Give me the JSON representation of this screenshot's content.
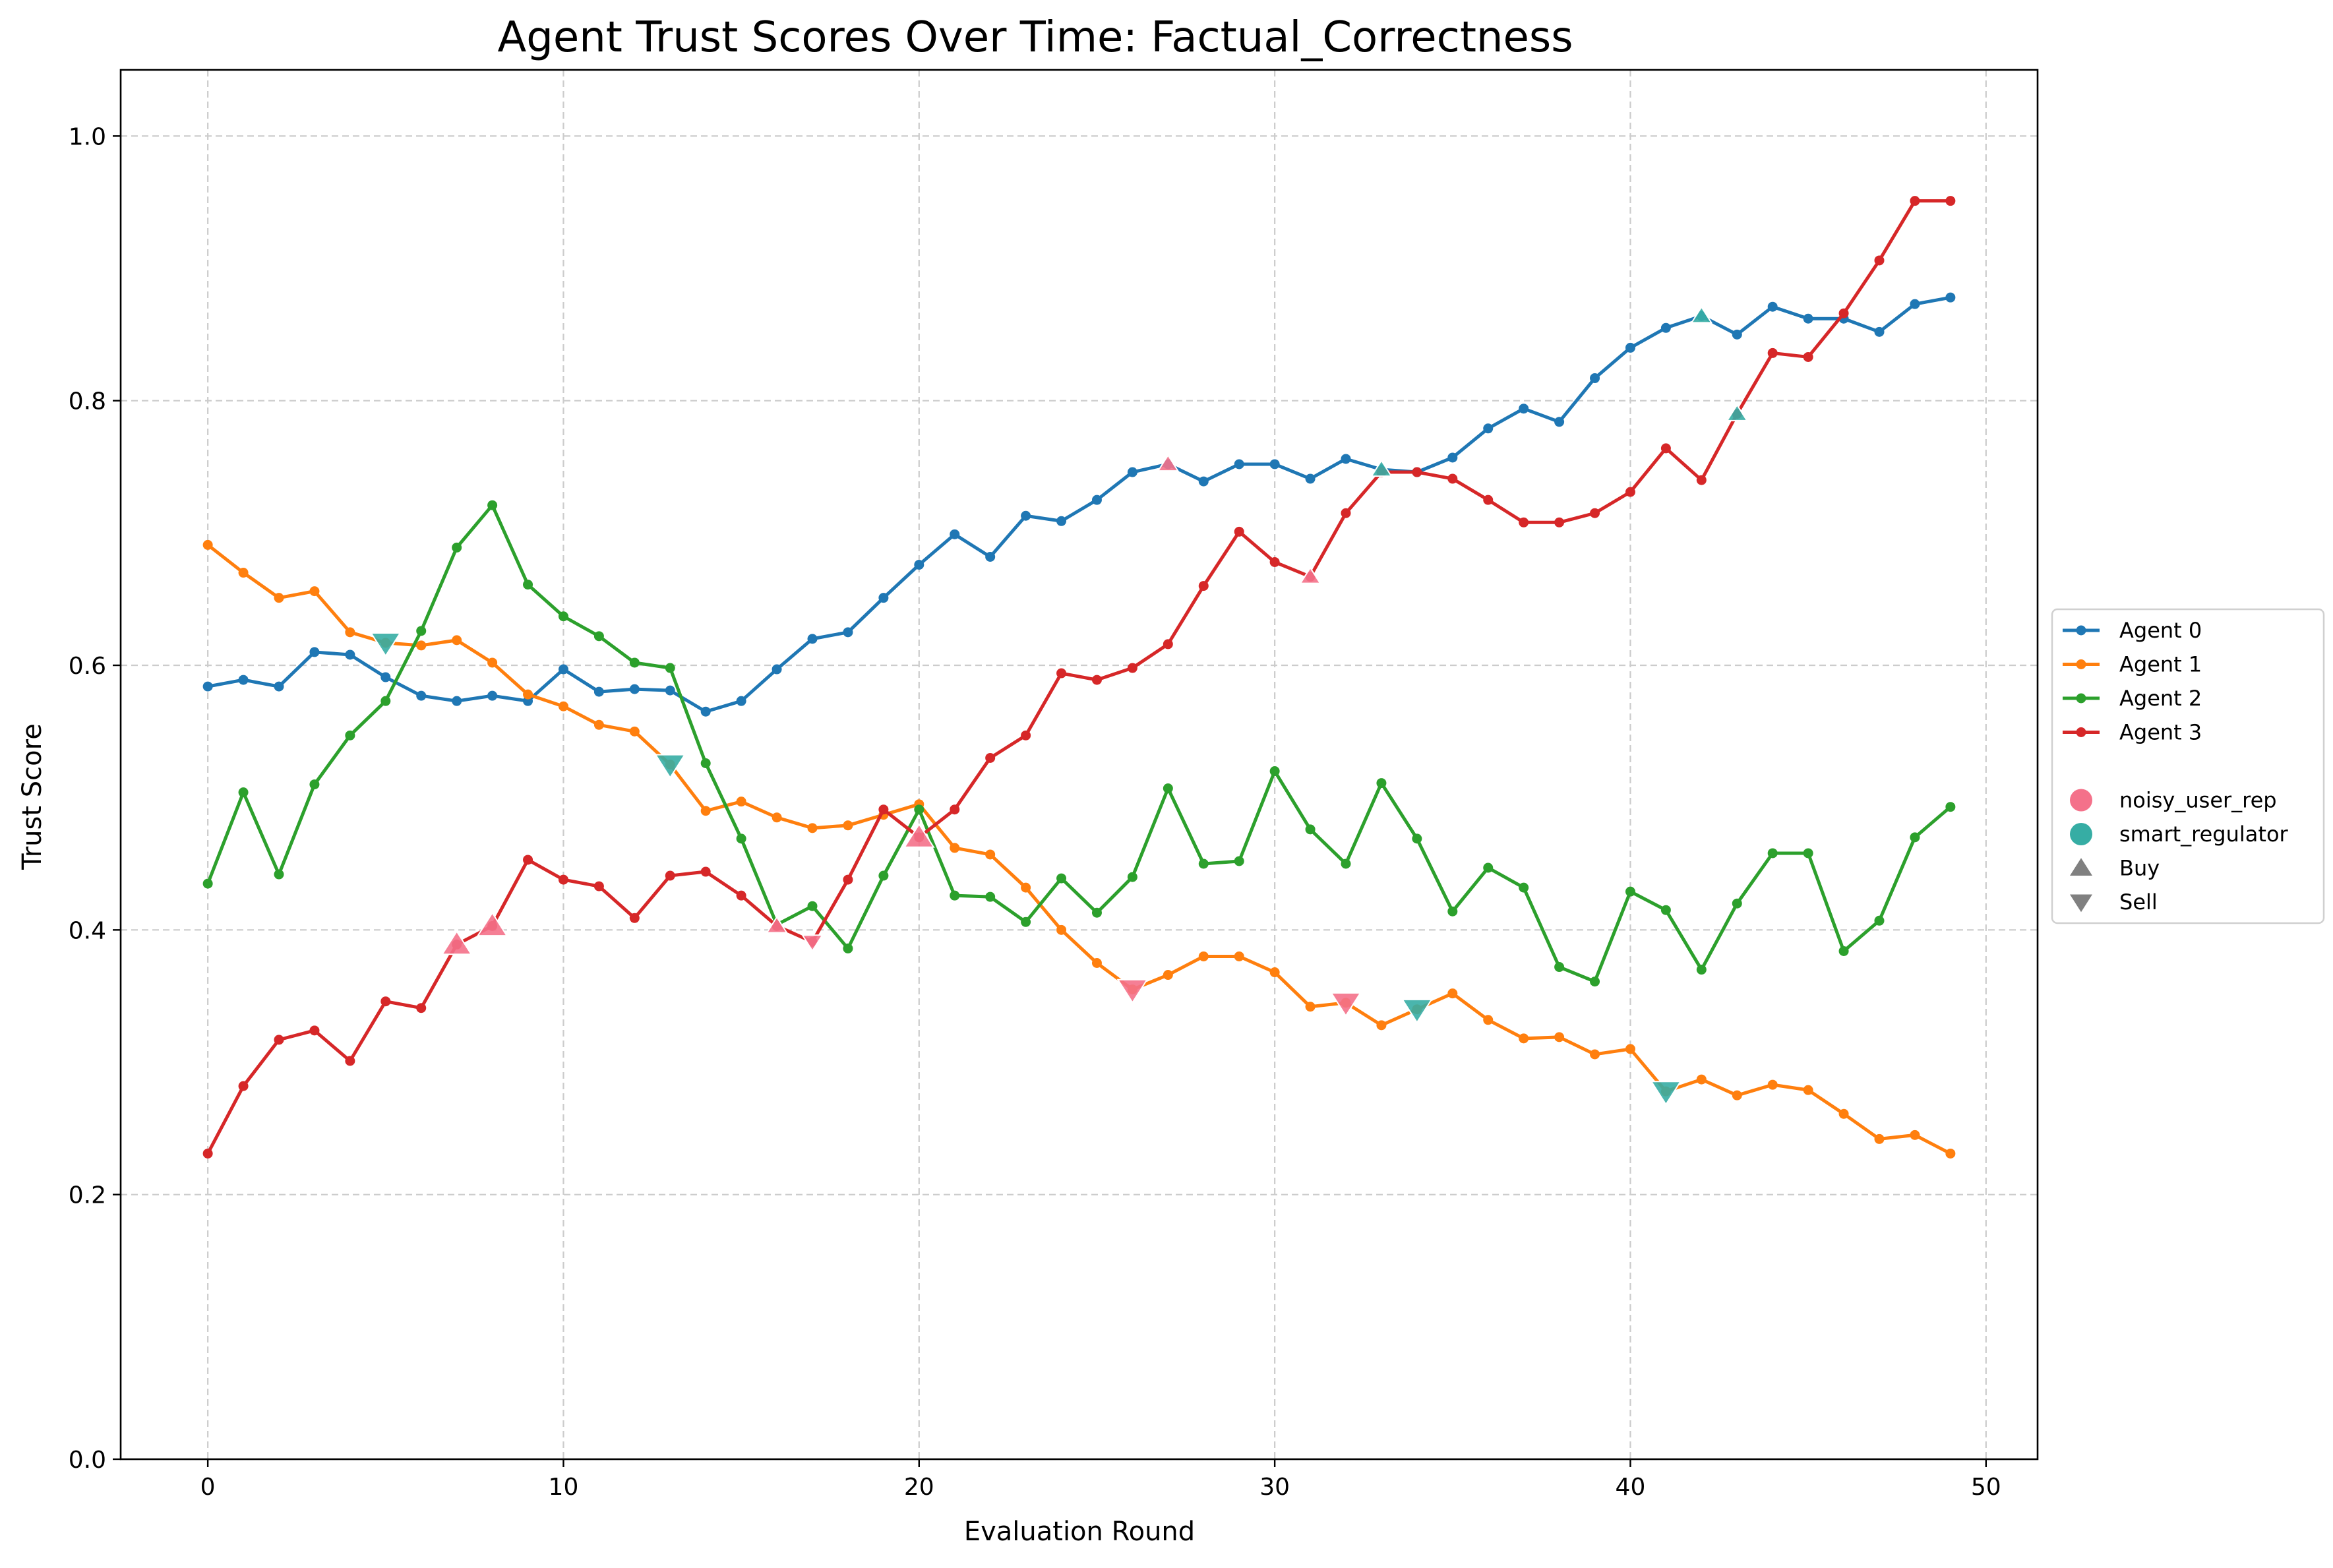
{
  "chart_data": {
    "type": "line",
    "title": "Agent Trust Scores Over Time: Factual_Correctness",
    "xlabel": "Evaluation Round",
    "ylabel": "Trust Score",
    "xlim": [
      -2.45,
      51.45
    ],
    "ylim": [
      0.0,
      1.05
    ],
    "xticks": [
      0,
      10,
      20,
      30,
      40,
      50
    ],
    "yticks": [
      0.0,
      0.2,
      0.4,
      0.6,
      0.8,
      1.0
    ],
    "xtick_labels": [
      "0",
      "10",
      "20",
      "30",
      "40",
      "50"
    ],
    "ytick_labels": [
      "0.0",
      "0.2",
      "0.4",
      "0.6",
      "0.8",
      "1.0"
    ],
    "grid": true,
    "legend_placement": "outside-right",
    "x": [
      0,
      1,
      2,
      3,
      4,
      5,
      6,
      7,
      8,
      9,
      10,
      11,
      12,
      13,
      14,
      15,
      16,
      17,
      18,
      19,
      20,
      21,
      22,
      23,
      24,
      25,
      26,
      27,
      28,
      29,
      30,
      31,
      32,
      33,
      34,
      35,
      36,
      37,
      38,
      39,
      40,
      41,
      42,
      43,
      44,
      45,
      46,
      47,
      48,
      49
    ],
    "series": [
      {
        "name": "Agent 0",
        "color": "#1f77b4",
        "values": [
          0.584,
          0.589,
          0.584,
          0.61,
          0.608,
          0.591,
          0.577,
          0.573,
          0.577,
          0.573,
          0.597,
          0.58,
          0.582,
          0.581,
          0.565,
          0.573,
          0.597,
          0.62,
          0.625,
          0.651,
          0.676,
          0.699,
          0.682,
          0.713,
          0.709,
          0.725,
          0.746,
          0.752,
          0.739,
          0.752,
          0.752,
          0.741,
          0.756,
          0.748,
          0.746,
          0.757,
          0.779,
          0.794,
          0.784,
          0.817,
          0.84,
          0.855,
          0.864,
          0.85,
          0.871,
          0.862,
          0.862,
          0.852,
          0.873,
          0.878
        ]
      },
      {
        "name": "Agent 1",
        "color": "#ff7f0e",
        "values": [
          0.691,
          0.67,
          0.651,
          0.656,
          0.625,
          0.617,
          0.615,
          0.619,
          0.602,
          0.578,
          0.569,
          0.555,
          0.55,
          0.525,
          0.49,
          0.497,
          0.485,
          0.477,
          0.479,
          0.487,
          0.495,
          0.462,
          0.457,
          0.432,
          0.4,
          0.375,
          0.355,
          0.366,
          0.38,
          0.38,
          0.368,
          0.342,
          0.345,
          0.328,
          0.34,
          0.352,
          0.332,
          0.318,
          0.319,
          0.306,
          0.31,
          0.278,
          0.287,
          0.275,
          0.283,
          0.279,
          0.261,
          0.242,
          0.245,
          0.231
        ]
      },
      {
        "name": "Agent 2",
        "color": "#2ca02c",
        "values": [
          0.435,
          0.504,
          0.442,
          0.51,
          0.547,
          0.573,
          0.626,
          0.689,
          0.721,
          0.661,
          0.637,
          0.622,
          0.602,
          0.598,
          0.526,
          0.469,
          0.404,
          0.418,
          0.386,
          0.441,
          0.491,
          0.426,
          0.425,
          0.406,
          0.439,
          0.413,
          0.44,
          0.507,
          0.45,
          0.452,
          0.52,
          0.476,
          0.45,
          0.511,
          0.469,
          0.414,
          0.447,
          0.432,
          0.372,
          0.361,
          0.429,
          0.415,
          0.37,
          0.42,
          0.458,
          0.458,
          0.384,
          0.407,
          0.47,
          0.493
        ]
      },
      {
        "name": "Agent 3",
        "color": "#d62728",
        "values": [
          0.231,
          0.282,
          0.317,
          0.324,
          0.301,
          0.346,
          0.341,
          0.389,
          0.403,
          0.453,
          0.438,
          0.433,
          0.409,
          0.441,
          0.444,
          0.426,
          0.403,
          0.391,
          0.438,
          0.491,
          0.47,
          0.491,
          0.53,
          0.547,
          0.594,
          0.589,
          0.598,
          0.616,
          0.66,
          0.701,
          0.678,
          0.667,
          0.715,
          0.746,
          0.746,
          0.741,
          0.725,
          0.708,
          0.708,
          0.715,
          0.731,
          0.764,
          0.74,
          0.79,
          0.836,
          0.833,
          0.866,
          0.906,
          0.951,
          0.951
        ]
      }
    ],
    "events": [
      {
        "source": "noisy_user_rep",
        "action": "Buy",
        "x": 7,
        "y": 0.389
      },
      {
        "source": "noisy_user_rep",
        "action": "Buy",
        "x": 8,
        "y": 0.403
      },
      {
        "source": "noisy_user_rep",
        "action": "Buy",
        "x": 16,
        "y": 0.403
      },
      {
        "source": "noisy_user_rep",
        "action": "Sell",
        "x": 17,
        "y": 0.391
      },
      {
        "source": "noisy_user_rep",
        "action": "Buy",
        "x": 20,
        "y": 0.47
      },
      {
        "source": "noisy_user_rep",
        "action": "Sell",
        "x": 26,
        "y": 0.355
      },
      {
        "source": "noisy_user_rep",
        "action": "Buy",
        "x": 27,
        "y": 0.752
      },
      {
        "source": "noisy_user_rep",
        "action": "Buy",
        "x": 31,
        "y": 0.667
      },
      {
        "source": "noisy_user_rep",
        "action": "Sell",
        "x": 32,
        "y": 0.345
      },
      {
        "source": "smart_regulator",
        "action": "Sell",
        "x": 5,
        "y": 0.617
      },
      {
        "source": "smart_regulator",
        "action": "Sell",
        "x": 13,
        "y": 0.525
      },
      {
        "source": "smart_regulator",
        "action": "Buy",
        "x": 33,
        "y": 0.748
      },
      {
        "source": "smart_regulator",
        "action": "Sell",
        "x": 34,
        "y": 0.34
      },
      {
        "source": "smart_regulator",
        "action": "Sell",
        "x": 41,
        "y": 0.278
      },
      {
        "source": "smart_regulator",
        "action": "Buy",
        "x": 42,
        "y": 0.864
      },
      {
        "source": "smart_regulator",
        "action": "Buy",
        "x": 43,
        "y": 0.79
      }
    ],
    "legend": {
      "series": [
        "Agent 0",
        "Agent 1",
        "Agent 2",
        "Agent 3"
      ],
      "sources": [
        {
          "label": "noisy_user_rep",
          "color": "#f4718a"
        },
        {
          "label": "smart_regulator",
          "color": "#36ada4"
        }
      ],
      "actions": [
        {
          "label": "Buy",
          "icon": "triangle-up-icon"
        },
        {
          "label": "Sell",
          "icon": "triangle-down-icon"
        }
      ]
    }
  }
}
